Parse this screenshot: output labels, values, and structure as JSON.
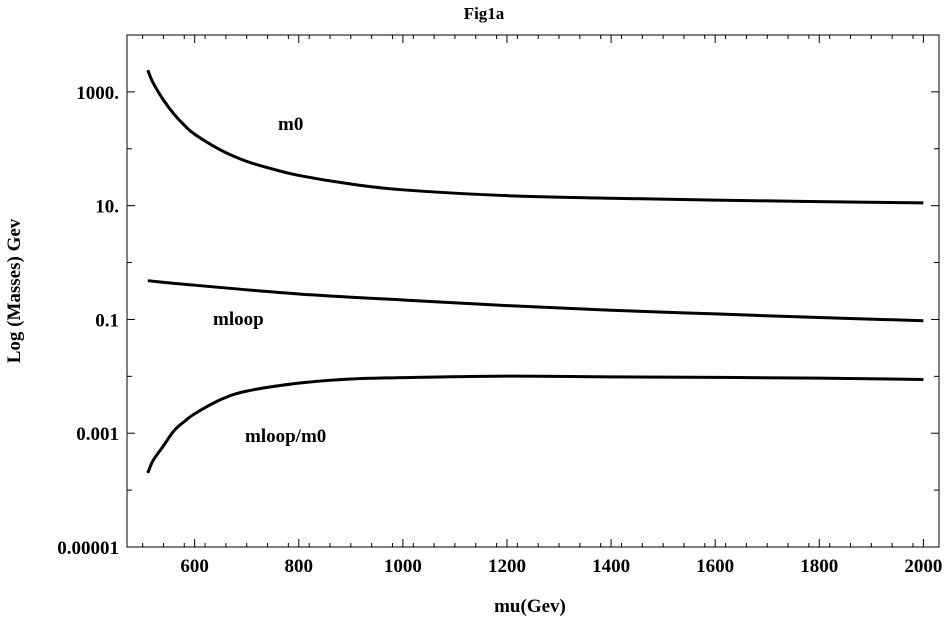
{
  "chart_data": {
    "type": "line",
    "title": "Fig1a",
    "xlabel": "mu(Gev)",
    "ylabel": "Log (Masses) Gev",
    "xlim": [
      470,
      2030
    ],
    "ylim": [
      1e-05,
      10000
    ],
    "yscale": "log",
    "x_ticks": [
      600,
      800,
      1000,
      1200,
      1400,
      1600,
      1800,
      2000
    ],
    "x_tick_labels": [
      "600",
      "800",
      "1000",
      "1200",
      "1400",
      "1600",
      "1800",
      "2000"
    ],
    "y_ticks": [
      1e-05,
      0.001,
      0.1,
      10,
      1000
    ],
    "y_tick_labels": [
      "0.00001",
      "0.001",
      "0.1",
      "10.",
      "1000."
    ],
    "grid": false,
    "legend": "none",
    "series": [
      {
        "label": "m0",
        "x": [
          510,
          520,
          540,
          560,
          580,
          600,
          650,
          700,
          750,
          800,
          900,
          1000,
          1200,
          1400,
          1600,
          1800,
          2000
        ],
        "y": [
          2400,
          1450,
          720,
          410,
          260,
          180,
          95,
          60,
          44,
          34,
          24,
          19,
          15,
          13.5,
          12.5,
          11.8,
          11.2
        ]
      },
      {
        "label": "mloop",
        "x": [
          510,
          600,
          800,
          1000,
          1200,
          1400,
          1600,
          1800,
          2000
        ],
        "y": [
          0.48,
          0.4,
          0.28,
          0.22,
          0.175,
          0.145,
          0.125,
          0.108,
          0.095
        ]
      },
      {
        "label": "mloop/m0",
        "x": [
          510,
          520,
          540,
          560,
          580,
          600,
          650,
          700,
          800,
          900,
          1000,
          1200,
          1400,
          1600,
          1800,
          2000
        ],
        "y": [
          0.0002,
          0.00033,
          0.0006,
          0.0011,
          0.0016,
          0.0022,
          0.0039,
          0.0055,
          0.0076,
          0.009,
          0.0095,
          0.0101,
          0.0098,
          0.0096,
          0.0093,
          0.0088
        ]
      }
    ],
    "annotations": [
      "m0",
      "mloop",
      "mloop/m0"
    ]
  }
}
